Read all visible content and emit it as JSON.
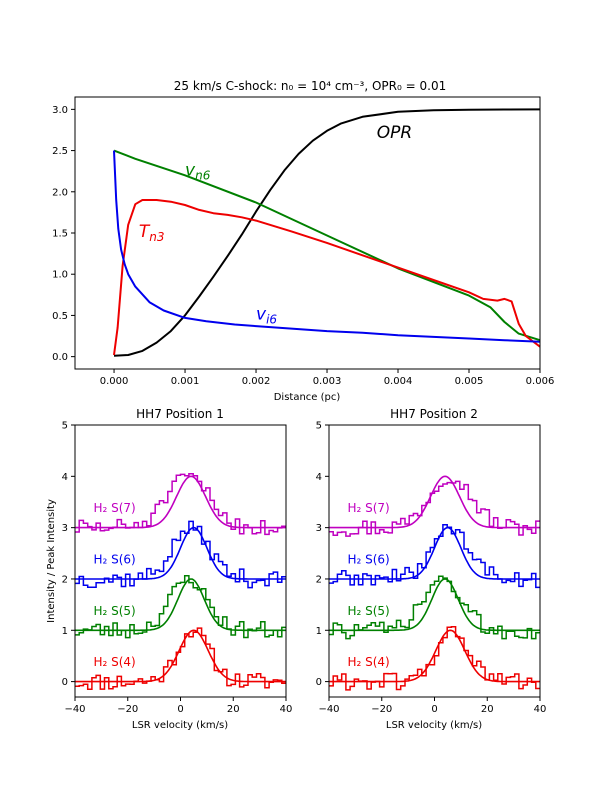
{
  "chart_data": [
    {
      "type": "line",
      "title": "25 km/s C-shock: n₀ = 10⁴ cm⁻³, OPR₀ = 0.01",
      "xlabel": "Distance (pc)",
      "ylabel": "",
      "xlim": [
        -0.00055,
        0.006
      ],
      "ylim": [
        -0.15,
        3.15
      ],
      "xticks": [
        "0.000",
        "0.001",
        "0.002",
        "0.003",
        "0.004",
        "0.005",
        "0.006"
      ],
      "yticks": [
        "0.0",
        "0.5",
        "1.0",
        "1.5",
        "2.0",
        "2.5",
        "3.0"
      ],
      "series": [
        {
          "name": "OPR",
          "color": "#000000",
          "x": [
            0,
            0.0002,
            0.0004,
            0.0006,
            0.0008,
            0.001,
            0.0012,
            0.0014,
            0.0016,
            0.0018,
            0.002,
            0.0022,
            0.0024,
            0.0026,
            0.0028,
            0.003,
            0.0032,
            0.0035,
            0.004,
            0.0045,
            0.005,
            0.0055,
            0.006
          ],
          "y": [
            0.01,
            0.02,
            0.07,
            0.17,
            0.31,
            0.5,
            0.73,
            0.97,
            1.22,
            1.48,
            1.76,
            2.02,
            2.26,
            2.46,
            2.62,
            2.74,
            2.83,
            2.91,
            2.97,
            2.99,
            2.995,
            2.998,
            3.0
          ]
        },
        {
          "name": "vn6",
          "color": "#008000",
          "x": [
            0,
            0.0003,
            0.001,
            0.002,
            0.003,
            0.004,
            0.005,
            0.0053,
            0.0055,
            0.0057,
            0.006
          ],
          "y": [
            2.5,
            2.4,
            2.2,
            1.87,
            1.47,
            1.07,
            0.74,
            0.6,
            0.42,
            0.28,
            0.2
          ]
        },
        {
          "name": "Tn3",
          "color": "#ee0000",
          "x": [
            0,
            5e-05,
            0.00012,
            0.0002,
            0.0003,
            0.0004,
            0.0006,
            0.0008,
            0.001,
            0.0012,
            0.0014,
            0.0016,
            0.0018,
            0.002,
            0.0025,
            0.003,
            0.0035,
            0.004,
            0.0045,
            0.005,
            0.0052,
            0.0054,
            0.0055,
            0.0056,
            0.0057,
            0.0058,
            0.006
          ],
          "y": [
            0.02,
            0.35,
            1.1,
            1.6,
            1.85,
            1.9,
            1.9,
            1.88,
            1.84,
            1.78,
            1.74,
            1.72,
            1.69,
            1.65,
            1.52,
            1.38,
            1.23,
            1.08,
            0.93,
            0.78,
            0.7,
            0.68,
            0.7,
            0.67,
            0.4,
            0.25,
            0.12
          ]
        },
        {
          "name": "vi6",
          "color": "#0000ee",
          "x": [
            0,
            3e-05,
            6e-05,
            0.0001,
            0.00015,
            0.0002,
            0.0003,
            0.0005,
            0.0007,
            0.001,
            0.0013,
            0.0017,
            0.002,
            0.0025,
            0.003,
            0.0035,
            0.004,
            0.0045,
            0.005,
            0.0055,
            0.006
          ],
          "y": [
            2.5,
            1.9,
            1.55,
            1.3,
            1.12,
            1.0,
            0.85,
            0.66,
            0.56,
            0.47,
            0.43,
            0.39,
            0.37,
            0.34,
            0.31,
            0.29,
            0.26,
            0.24,
            0.22,
            0.2,
            0.18
          ]
        }
      ],
      "annotations": [
        {
          "text": "OPR",
          "x": 0.0037,
          "y": 2.65,
          "color": "#000000"
        },
        {
          "text": "v",
          "sub": "n6",
          "x": 0.001,
          "y": 2.2,
          "color": "#008000"
        },
        {
          "text": "T",
          "sub": "n3",
          "x": 0.00035,
          "y": 1.45,
          "color": "#ee0000"
        },
        {
          "text": "v",
          "sub": "i6",
          "x": 0.002,
          "y": 0.45,
          "color": "#0000ee"
        }
      ]
    },
    {
      "type": "line",
      "title": "HH7 Position 1",
      "xlabel": "LSR velocity (km/s)",
      "ylabel": "Intensity / Peak Intensity",
      "xlim": [
        -40,
        40
      ],
      "ylim": [
        -0.3,
        5
      ],
      "xticks": [
        "−40",
        "−20",
        "0",
        "20",
        "40"
      ],
      "yticks": [
        "0",
        "1",
        "2",
        "3",
        "4",
        "5"
      ],
      "series": [
        {
          "name": "H₂ S(4)",
          "color": "#ee0000",
          "offset": 0,
          "center": 5,
          "width": 5.5,
          "obs_center": 5,
          "obs_width": 6,
          "seed": 11
        },
        {
          "name": "H₂ S(5)",
          "color": "#008000",
          "offset": 1,
          "center": 4,
          "width": 5,
          "obs_center": 3,
          "obs_width": 7,
          "seed": 23
        },
        {
          "name": "H₂ S(6)",
          "color": "#0000ee",
          "offset": 2,
          "center": 5,
          "width": 5,
          "obs_center": 4,
          "obs_width": 7,
          "seed": 37
        },
        {
          "name": "H₂ S(7)",
          "color": "#c000c0",
          "offset": 3,
          "center": 4,
          "width": 5.5,
          "obs_center": 3,
          "obs_width": 8,
          "seed": 51
        }
      ]
    },
    {
      "type": "line",
      "title": "HH7 Position 2",
      "xlabel": "LSR velocity (km/s)",
      "ylabel": "",
      "xlim": [
        -40,
        40
      ],
      "ylim": [
        -0.3,
        5
      ],
      "xticks": [
        "−40",
        "−20",
        "0",
        "20",
        "40"
      ],
      "yticks": [
        "0",
        "1",
        "2",
        "3",
        "4",
        "5"
      ],
      "series": [
        {
          "name": "H₂ S(4)",
          "color": "#ee0000",
          "offset": 0,
          "center": 6,
          "width": 5.5,
          "obs_center": 7,
          "obs_width": 6,
          "seed": 61
        },
        {
          "name": "H₂ S(5)",
          "color": "#008000",
          "offset": 1,
          "center": 4,
          "width": 5,
          "obs_center": 3,
          "obs_width": 7,
          "seed": 73
        },
        {
          "name": "H₂ S(6)",
          "color": "#0000ee",
          "offset": 2,
          "center": 5,
          "width": 5,
          "obs_center": 6,
          "obs_width": 7,
          "seed": 89
        },
        {
          "name": "H₂ S(7)",
          "color": "#c000c0",
          "offset": 3,
          "center": 4,
          "width": 5.5,
          "obs_center": 6,
          "obs_width": 8,
          "seed": 97
        }
      ]
    }
  ]
}
